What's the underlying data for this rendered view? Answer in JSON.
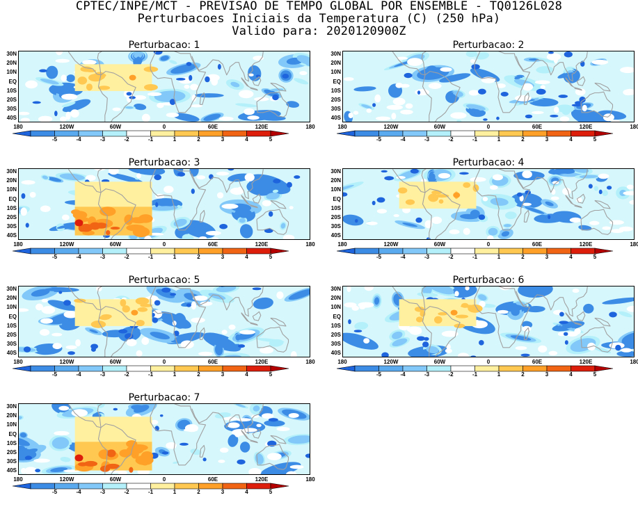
{
  "header": {
    "line1": "CPTEC/INPE/MCT - PREVISAO DE TEMPO GLOBAL POR ENSEMBLE - TQ0126L028",
    "line2": "Perturbacoes Iniciais da Temperatura (C) (250 hPa)",
    "line3": "Valido para: 2020120900Z"
  },
  "lat_labels": [
    "30N",
    "20N",
    "10N",
    "EQ",
    "10S",
    "20S",
    "30S",
    "40S"
  ],
  "lon_labels": [
    "180",
    "120W",
    "60W",
    "0",
    "60E",
    "120E",
    "180"
  ],
  "colorbar": {
    "labels": [
      "-5",
      "-4",
      "-3",
      "-2",
      "-1",
      "1",
      "2",
      "3",
      "4",
      "5"
    ],
    "colors": [
      "#1e64dc",
      "#3c8ce6",
      "#5aaaf0",
      "#82c8f8",
      "#b4f0fa",
      "#ffffff",
      "#fff0a0",
      "#ffc850",
      "#ffa028",
      "#f06414",
      "#dc1e0a",
      "#b40000"
    ]
  },
  "panels": [
    {
      "title": "Perturbacao: 1",
      "box_intensity": "weak"
    },
    {
      "title": "Perturbacao: 2",
      "box_intensity": "none"
    },
    {
      "title": "Perturbacao: 3",
      "box_intensity": "strong"
    },
    {
      "title": "Perturbacao: 4",
      "box_intensity": "weak"
    },
    {
      "title": "Perturbacao: 5",
      "box_intensity": "weak"
    },
    {
      "title": "Perturbacao: 6",
      "box_intensity": "weak"
    },
    {
      "title": "Perturbacao: 7",
      "box_intensity": "strong"
    }
  ]
}
